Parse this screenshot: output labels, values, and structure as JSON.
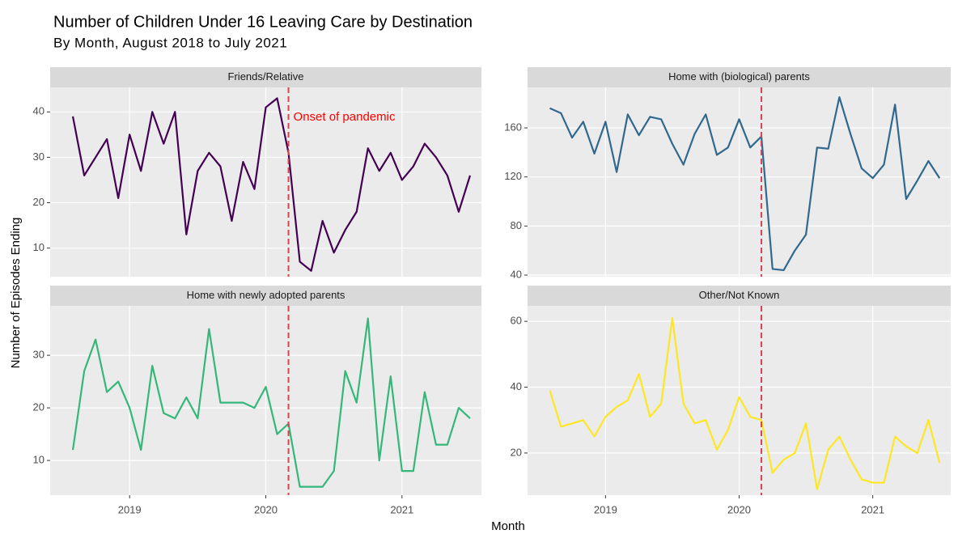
{
  "chart_data": {
    "type": "line",
    "title": "Number of Children Under 16 Leaving Care by Destination",
    "subtitle": "By Month, August 2018 to July 2021",
    "xlabel": "Month",
    "ylabel": "Number of Episodes Ending",
    "annotation": "Onset of pandemic",
    "vline": "2020-03",
    "vline_color": "#d6454f",
    "grid": true,
    "x": [
      "2018-08",
      "2018-09",
      "2018-10",
      "2018-11",
      "2018-12",
      "2019-01",
      "2019-02",
      "2019-03",
      "2019-04",
      "2019-05",
      "2019-06",
      "2019-07",
      "2019-08",
      "2019-09",
      "2019-10",
      "2019-11",
      "2019-12",
      "2020-01",
      "2020-02",
      "2020-03",
      "2020-04",
      "2020-05",
      "2020-06",
      "2020-07",
      "2020-08",
      "2020-09",
      "2020-10",
      "2020-11",
      "2020-12",
      "2021-01",
      "2021-02",
      "2021-03",
      "2021-04",
      "2021-05",
      "2021-06",
      "2021-07"
    ],
    "xlim": [
      "2018-06",
      "2021-08"
    ],
    "xticks": [
      2019,
      2020,
      2021
    ],
    "series": [
      {
        "name": "Friends/Relative",
        "color": "#440154",
        "values": [
          39,
          26,
          30,
          34,
          21,
          35,
          27,
          40,
          33,
          40,
          13,
          27,
          31,
          28,
          16,
          29,
          23,
          41,
          43,
          31,
          7,
          5,
          16,
          9,
          14,
          18,
          32,
          27,
          31,
          25,
          28,
          33,
          30,
          26,
          18,
          26
        ],
        "ylim": [
          3.7,
          45.4
        ],
        "yticks": [
          10,
          20,
          30,
          40
        ]
      },
      {
        "name": "Home with (biological) parents",
        "color": "#31688e",
        "values": [
          176,
          172,
          152,
          165,
          139,
          165,
          124,
          171,
          154,
          169,
          167,
          147,
          130,
          155,
          171,
          138,
          144,
          167,
          144,
          153,
          45,
          44,
          60,
          73,
          144,
          143,
          185,
          155,
          127,
          119,
          130,
          179,
          102,
          117,
          133,
          119
        ],
        "ylim": [
          38.7,
          193
        ],
        "yticks": [
          40,
          80,
          120,
          160
        ]
      },
      {
        "name": "Home with newly adopted parents",
        "color": "#35b779",
        "values": [
          12,
          27,
          33,
          23,
          25,
          20,
          12,
          28,
          19,
          18,
          22,
          18,
          35,
          21,
          21,
          21,
          20,
          24,
          15,
          17,
          5,
          5,
          5,
          8,
          27,
          21,
          37,
          10,
          26,
          8,
          8,
          23,
          13,
          13,
          20,
          18
        ],
        "ylim": [
          3.4,
          39.4
        ],
        "yticks": [
          10,
          20,
          30
        ]
      },
      {
        "name": "Other/Not Known",
        "color": "#fde725",
        "values": [
          39,
          28,
          29,
          30,
          25,
          31,
          34,
          36,
          44,
          31,
          35,
          61,
          35,
          29,
          30,
          21,
          27,
          37,
          31,
          30,
          14,
          18,
          20,
          29,
          9,
          21,
          25,
          18,
          12,
          11,
          11,
          25,
          22,
          20,
          30,
          17
        ],
        "ylim": [
          7.2,
          64.7
        ],
        "yticks": [
          20,
          40,
          60
        ]
      }
    ]
  }
}
